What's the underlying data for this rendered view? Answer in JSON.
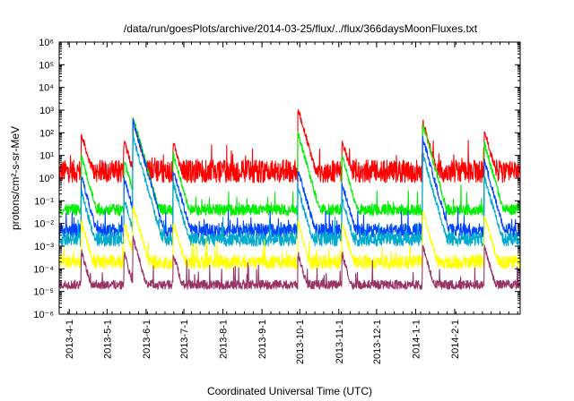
{
  "chart_data": {
    "type": "line",
    "title": "/data/run/goesPlots/archive/2014-03-25/flux/../flux/366daysMoonFluxes.txt",
    "xlabel": "Coordinated Universal Time (UTC)",
    "ylabel": "protons/cm²-s-sr-MeV",
    "yscale": "log",
    "ylim_exp": [
      -6,
      6
    ],
    "y_tick_labels": [
      "10⁻⁶",
      "10⁻⁵",
      "10⁻⁴",
      "10⁻³",
      "10⁻²",
      "10⁻¹",
      "10⁰",
      "10¹",
      "10²",
      "10³",
      "10⁴",
      "10⁵",
      "10⁶"
    ],
    "xlim": [
      "2013-03-24",
      "2014-03-25"
    ],
    "x_ticks": [
      "2013-4-1",
      "2013-5-1",
      "2013-6-1",
      "2013-7-1",
      "2013-8-1",
      "2013-9-1",
      "2013-10-1",
      "2013-11-1",
      "2013-12-1",
      "2014-1-1",
      "2014-2-1"
    ],
    "x_tick_dates": [
      "2013-04-01",
      "2013-05-01",
      "2013-06-01",
      "2013-07-01",
      "2013-08-01",
      "2013-09-01",
      "2013-10-01",
      "2013-11-01",
      "2013-12-01",
      "2014-01-01",
      "2014-02-01"
    ],
    "grid": false,
    "legend": false,
    "events": [
      {
        "date": "2013-04-11",
        "peak": [
          80,
          8,
          1,
          0.2,
          0.01,
          0.0005
        ]
      },
      {
        "date": "2013-05-15",
        "peak": [
          40,
          5,
          0.8,
          0.1,
          0.01,
          0.0004
        ]
      },
      {
        "date": "2013-05-22",
        "peak": [
          300,
          400,
          300,
          60,
          0.05,
          0.002
        ]
      },
      {
        "date": "2013-06-23",
        "peak": [
          30,
          10,
          2,
          0.5,
          0.01,
          0.0004
        ]
      },
      {
        "date": "2013-09-30",
        "peak": [
          1000,
          80,
          2,
          0.3,
          0.01,
          0.0004
        ]
      },
      {
        "date": "2013-11-04",
        "peak": [
          40,
          8,
          0.5,
          0.1,
          0.01,
          0.0004
        ]
      },
      {
        "date": "2014-01-07",
        "peak": [
          300,
          200,
          50,
          10,
          0.03,
          0.001
        ]
      },
      {
        "date": "2014-02-25",
        "peak": [
          100,
          30,
          5,
          1,
          0.02,
          0.0008
        ]
      }
    ],
    "series": [
      {
        "color": "#ff0000",
        "baseline": 2,
        "noise": 0.5
      },
      {
        "color": "#00ee00",
        "baseline": 0.04,
        "noise": 0.25
      },
      {
        "color": "#0044ff",
        "baseline": 0.005,
        "noise": 0.3
      },
      {
        "color": "#00aacc",
        "baseline": 0.002,
        "noise": 0.3
      },
      {
        "color": "#ffff00",
        "baseline": 0.0002,
        "noise": 0.3
      },
      {
        "color": "#993366",
        "baseline": 2e-05,
        "noise": 0.2
      }
    ]
  }
}
